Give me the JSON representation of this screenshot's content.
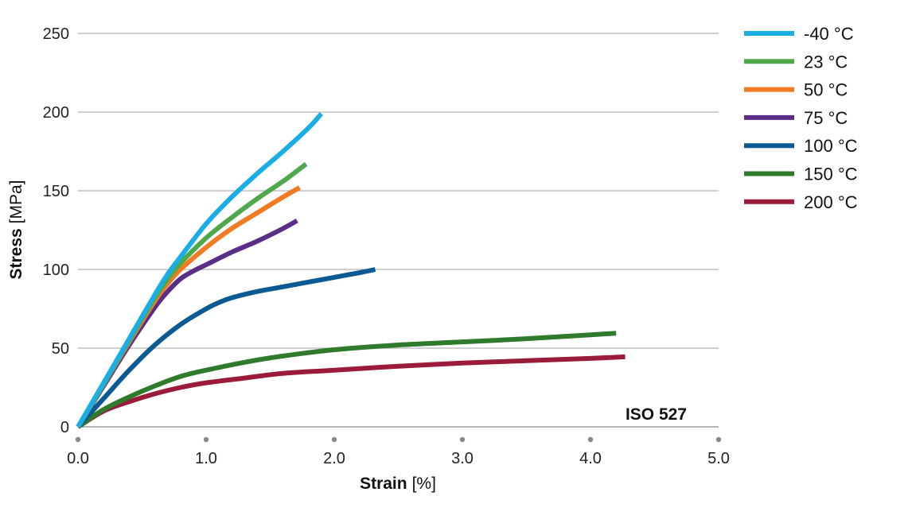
{
  "chart_data": {
    "type": "line",
    "xlabel_bold": "Strain",
    "xlabel_unit": "[%]",
    "ylabel_bold": "Stress",
    "ylabel_unit": "[MPa]",
    "xlim": [
      0,
      5
    ],
    "ylim": [
      0,
      250
    ],
    "x_ticks": [
      0,
      1,
      2,
      3,
      4,
      5
    ],
    "x_tick_labels": [
      "0.0",
      "1.0",
      "2.0",
      "3.0",
      "4.0",
      "5.0"
    ],
    "y_ticks": [
      0,
      50,
      100,
      150,
      200,
      250
    ],
    "y_tick_labels": [
      "0",
      "50",
      "100",
      "150",
      "200",
      "250"
    ],
    "grid": "horizontal",
    "legend_position": "right",
    "annotation": "ISO 527",
    "series": [
      {
        "name": "-40 °C",
        "color": "#1aaee5",
        "x": [
          0,
          0.2,
          0.4,
          0.6,
          0.7,
          0.8,
          1.0,
          1.2,
          1.4,
          1.6,
          1.8,
          1.9
        ],
        "y": [
          0,
          28,
          56,
          84,
          97,
          108,
          129,
          146,
          161,
          175,
          190,
          199
        ]
      },
      {
        "name": "23 °C",
        "color": "#4ea94b",
        "x": [
          0,
          0.2,
          0.4,
          0.6,
          0.7,
          0.8,
          1.0,
          1.2,
          1.4,
          1.6,
          1.78
        ],
        "y": [
          0,
          27,
          55,
          82,
          94,
          104,
          120,
          133,
          145,
          156,
          167
        ]
      },
      {
        "name": "50 °C",
        "color": "#f07b22",
        "x": [
          0,
          0.2,
          0.4,
          0.6,
          0.7,
          0.8,
          1.0,
          1.2,
          1.4,
          1.6,
          1.73
        ],
        "y": [
          0,
          27,
          54,
          80,
          91,
          100,
          114,
          126,
          136,
          146,
          152
        ]
      },
      {
        "name": "75 °C",
        "color": "#5b2d86",
        "x": [
          0,
          0.2,
          0.4,
          0.6,
          0.7,
          0.8,
          0.9,
          1.0,
          1.2,
          1.4,
          1.6,
          1.71
        ],
        "y": [
          0,
          26,
          52,
          76,
          86,
          94,
          99,
          103,
          111,
          118,
          126,
          131
        ]
      },
      {
        "name": "100 °C",
        "color": "#0c5a94",
        "x": [
          0,
          0.2,
          0.4,
          0.6,
          0.8,
          1.0,
          1.1,
          1.2,
          1.4,
          1.6,
          1.8,
          2.0,
          2.2,
          2.32
        ],
        "y": [
          0,
          18,
          36,
          52,
          65,
          75,
          79,
          82,
          86,
          89,
          92,
          95,
          98,
          100
        ]
      },
      {
        "name": "150 °C",
        "color": "#2f7a2b",
        "x": [
          0,
          0.2,
          0.4,
          0.6,
          0.8,
          1.0,
          1.3,
          1.6,
          2.0,
          2.5,
          3.0,
          3.5,
          4.0,
          4.2
        ],
        "y": [
          0,
          11,
          19,
          26,
          32,
          36,
          41,
          45,
          49,
          52,
          54,
          56,
          58.5,
          59.5
        ]
      },
      {
        "name": "200 °C",
        "color": "#9b1c3a",
        "x": [
          0,
          0.2,
          0.4,
          0.6,
          0.8,
          1.0,
          1.3,
          1.6,
          2.0,
          2.5,
          3.0,
          3.5,
          4.0,
          4.27
        ],
        "y": [
          0,
          10,
          16,
          21,
          25,
          28,
          31,
          34,
          36,
          38.5,
          40.5,
          42,
          43.5,
          44.5
        ]
      }
    ]
  }
}
